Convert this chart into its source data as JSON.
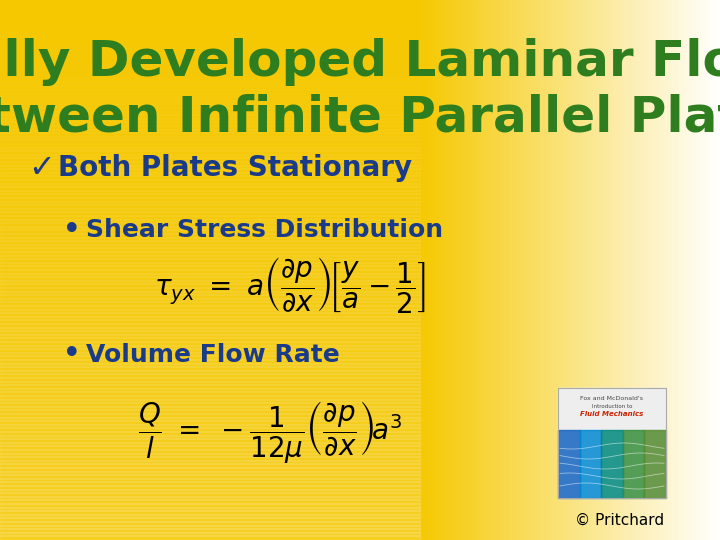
{
  "title_line1": "Fully Developed Laminar Flow",
  "title_line2": "Between Infinite Parallel Plates",
  "title_color": "#2e7d1e",
  "title_fontsize": 36,
  "bg_gold": "#f5c800",
  "check_item": "Both Plates Stationary",
  "check_color": "#1a3a8a",
  "check_fontsize": 20,
  "bullet1": "Shear Stress Distribution",
  "bullet2": "Volume Flow Rate",
  "bullet_color": "#1a3a8a",
  "bullet_fontsize": 18,
  "eq_color": "#000000",
  "eq_fontsize": 20,
  "copyright": "© Pritchard",
  "copyright_color": "#000000",
  "copyright_fontsize": 11
}
